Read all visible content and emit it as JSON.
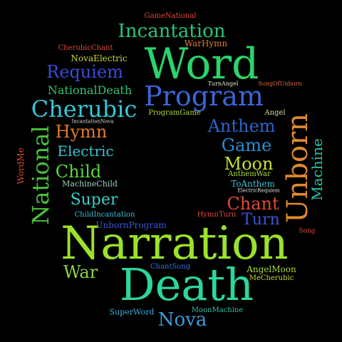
{
  "words": [
    {
      "id": "narration",
      "text": "Narration",
      "color": "#9be22b"
    },
    {
      "id": "death",
      "text": "Death",
      "color": "#2ad7a0"
    },
    {
      "id": "word",
      "text": "Word",
      "color": "#2ad46a"
    },
    {
      "id": "program",
      "text": "Program",
      "color": "#3a66d8"
    },
    {
      "id": "unborn",
      "text": "Unborn",
      "color": "#e08a2b"
    },
    {
      "id": "national",
      "text": "National",
      "color": "#49c23a"
    },
    {
      "id": "incantation",
      "text": "Incantation",
      "color": "#2ac47a"
    },
    {
      "id": "requiem",
      "text": "Requiem",
      "color": "#3a4bd8"
    },
    {
      "id": "cherubic",
      "text": "Cherubic",
      "color": "#39c6d6"
    },
    {
      "id": "anthem",
      "text": "Anthem",
      "color": "#2a65c8"
    },
    {
      "id": "game",
      "text": "Game",
      "color": "#2a8fd6"
    },
    {
      "id": "moon",
      "text": "Moon",
      "color": "#c8e02a"
    },
    {
      "id": "chant",
      "text": "Chant",
      "color": "#e34a3a"
    },
    {
      "id": "turn",
      "text": "Turn",
      "color": "#3a55d8"
    },
    {
      "id": "hymn",
      "text": "Hymn",
      "color": "#e07a2a"
    },
    {
      "id": "electric",
      "text": "Electric",
      "color": "#3ac6d6"
    },
    {
      "id": "child",
      "text": "Child",
      "color": "#58d63a"
    },
    {
      "id": "super",
      "text": "Super",
      "color": "#3ad0c8"
    },
    {
      "id": "machine",
      "text": "Machine",
      "color": "#2ac4a4"
    },
    {
      "id": "war",
      "text": "War",
      "color": "#8ed63a"
    },
    {
      "id": "nova",
      "text": "Nova",
      "color": "#3a9bd8"
    },
    {
      "id": "nationaldeath",
      "text": "NationalDeath",
      "color": "#32c270"
    },
    {
      "id": "novaelectric",
      "text": "NovaElectric",
      "color": "#c8d83a"
    },
    {
      "id": "cherubicchant",
      "text": "CherubicChant",
      "color": "#e04a3a"
    },
    {
      "id": "warhymn",
      "text": "WarHymn",
      "color": "#e07a2a"
    },
    {
      "id": "gamenational",
      "text": "GameNational",
      "color": "#e04a3a"
    },
    {
      "id": "turnangel",
      "text": "TurnAngel",
      "color": "#e8e8c8"
    },
    {
      "id": "songofunborn",
      "text": "SongOfUnborn",
      "color": "#e06a4a"
    },
    {
      "id": "programgame",
      "text": "ProgramGame",
      "color": "#b0d83a"
    },
    {
      "id": "angel",
      "text": "Angel",
      "color": "#c8e0a0"
    },
    {
      "id": "incantationnova",
      "text": "IncantationNova",
      "color": "#dcdcdc"
    },
    {
      "id": "wordme",
      "text": "WordMe",
      "color": "#e04a3a"
    },
    {
      "id": "machinechild",
      "text": "MachineChild",
      "color": "#a0d8c0"
    },
    {
      "id": "anthemwar",
      "text": "AnthemWar",
      "color": "#a8e03a"
    },
    {
      "id": "toanthem",
      "text": "ToAnthem",
      "color": "#3ac0d8"
    },
    {
      "id": "electricrequiem",
      "text": "ElectricRequiem",
      "color": "#e8e8e8"
    },
    {
      "id": "hymnturn",
      "text": "HymnTurn",
      "color": "#e04a3a"
    },
    {
      "id": "childincantation",
      "text": "ChildIncantation",
      "color": "#3ac0d8"
    },
    {
      "id": "unbornprogram",
      "text": "UnbornProgram",
      "color": "#3a55d8"
    },
    {
      "id": "song",
      "text": "Song",
      "color": "#e04a3a"
    },
    {
      "id": "chantsong",
      "text": "ChantSong",
      "color": "#3a70d8"
    },
    {
      "id": "angelmoon",
      "text": "AngelMoon",
      "color": "#a8d83a"
    },
    {
      "id": "mecherubic",
      "text": "MeCherubic",
      "color": "#c8d83a"
    },
    {
      "id": "superword",
      "text": "SuperWord",
      "color": "#3ab0d8"
    },
    {
      "id": "moonmachine",
      "text": "MoonMachine",
      "color": "#3ac0a0"
    }
  ]
}
